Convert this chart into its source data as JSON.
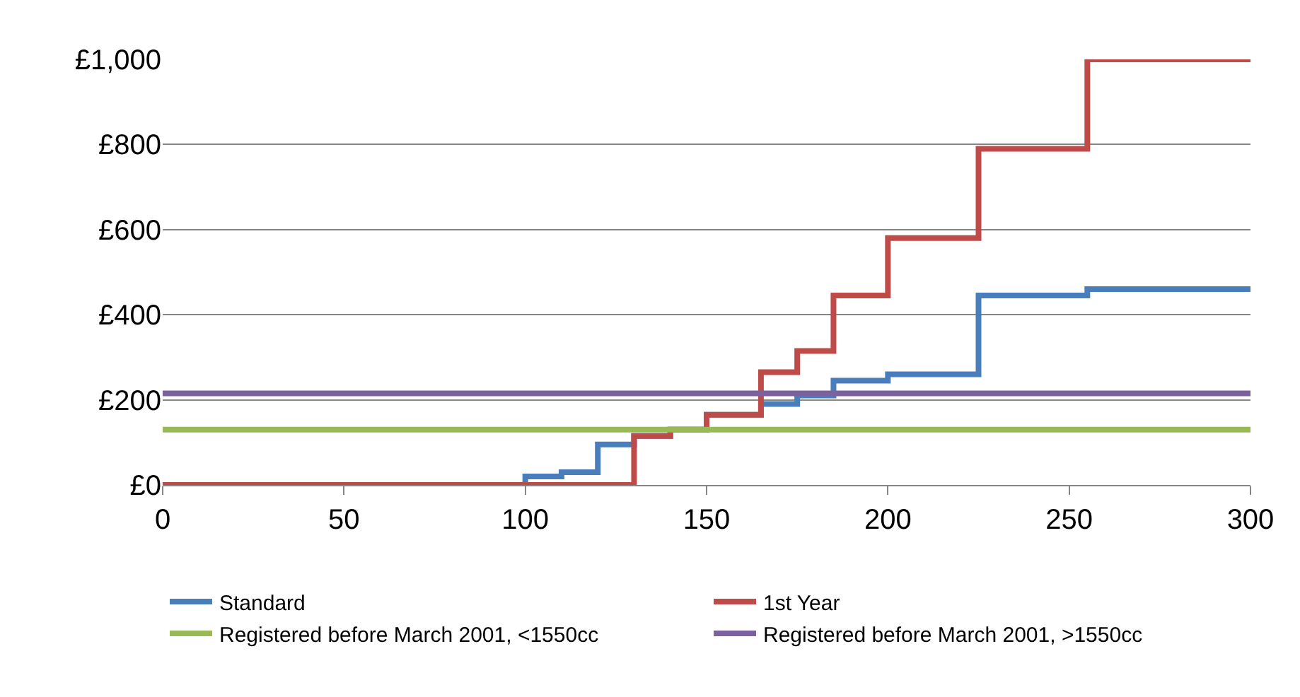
{
  "chart_data": {
    "type": "step",
    "xlim": [
      0,
      300
    ],
    "xticks": [
      0,
      50,
      100,
      150,
      200,
      250,
      300
    ],
    "ylim": [
      0,
      1000
    ],
    "yticks": [
      {
        "value": 0,
        "label": "£0"
      },
      {
        "value": 200,
        "label": "£200"
      },
      {
        "value": 400,
        "label": "£400"
      },
      {
        "value": 600,
        "label": "£600"
      },
      {
        "value": 800,
        "label": "£800"
      },
      {
        "value": 1000,
        "label": "£1,000"
      }
    ],
    "grid": "y",
    "legend": "bottom",
    "marker": "none",
    "line_style": "solid",
    "series": [
      {
        "name": "Standard",
        "color": "#4a7ebb",
        "x": [
          0,
          100,
          110,
          120,
          130,
          140,
          150,
          165,
          175,
          185,
          200,
          225,
          255,
          300
        ],
        "values": [
          0,
          20,
          30,
          95,
          115,
          130,
          165,
          190,
          210,
          245,
          260,
          445,
          460,
          460
        ]
      },
      {
        "name": "1st Year",
        "color": "#be4b48",
        "x": [
          0,
          130,
          140,
          150,
          165,
          175,
          185,
          200,
          225,
          255,
          300
        ],
        "values": [
          0,
          115,
          130,
          165,
          265,
          315,
          445,
          580,
          790,
          1000,
          1000
        ]
      },
      {
        "name": "Registered before March 2001, <1550cc",
        "color": "#98b954",
        "x": [
          0,
          300
        ],
        "values": [
          130,
          130
        ]
      },
      {
        "name": "Registered before March 2001, >1550cc",
        "color": "#7d60a0",
        "x": [
          0,
          300
        ],
        "values": [
          215,
          215
        ]
      }
    ]
  }
}
